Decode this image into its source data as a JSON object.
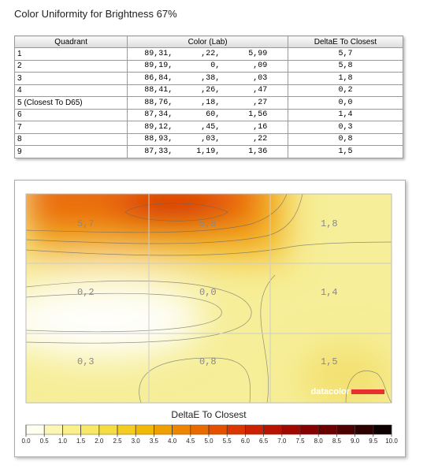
{
  "header": {
    "title": "Color Uniformity for Brightness 67%"
  },
  "table": {
    "columns": [
      "Quadrant",
      "Color (Lab)",
      "DeltaE To Closest"
    ],
    "rows": [
      [
        "1",
        [
          "89,31,",
          ",22,",
          "5,99"
        ],
        "5,7"
      ],
      [
        "2",
        [
          "89,19,",
          "0,",
          ",09"
        ],
        "5,8"
      ],
      [
        "3",
        [
          "86,84,",
          ",38,",
          ",03"
        ],
        "1,8"
      ],
      [
        "4",
        [
          "88,41,",
          ",26,",
          ",47"
        ],
        "0,2"
      ],
      [
        "5 (Closest To D65)",
        [
          "88,76,",
          ",18,",
          ",27"
        ],
        "0,0"
      ],
      [
        "6",
        [
          "87,34,",
          "60,",
          "1,56"
        ],
        "1,4"
      ],
      [
        "7",
        [
          "89,12,",
          ",45,",
          ",16"
        ],
        "0,3"
      ],
      [
        "8",
        [
          "88,93,",
          ",03,",
          ",22"
        ],
        "0,8"
      ],
      [
        "9",
        [
          "87,33,",
          "1,19,",
          "1,36"
        ],
        "1,5"
      ]
    ]
  },
  "heatmap": {
    "labels": [
      [
        "5,7",
        "5,8",
        "1,8"
      ],
      [
        "0,2",
        "0,0",
        "1,4"
      ],
      [
        "0,3",
        "0,8",
        "1,5"
      ]
    ],
    "logo": "datacolor",
    "legend_title": "DeltaE To Closest",
    "legend_ticks": [
      "0.0",
      "0.5",
      "1.0",
      "1.5",
      "2.0",
      "2.5",
      "3.0",
      "3.5",
      "4.0",
      "4.5",
      "5.0",
      "5.5",
      "6.0",
      "6.5",
      "7.0",
      "7.5",
      "8.0",
      "8.5",
      "9.0",
      "9.5",
      "10.0"
    ],
    "legend_colors": [
      "#fffff0",
      "#fbf6b4",
      "#f9f08c",
      "#f7e866",
      "#f6dc44",
      "#f4cc22",
      "#f2b806",
      "#f09f00",
      "#ee8500",
      "#ea6a00",
      "#e45000",
      "#dc3600",
      "#cc2200",
      "#b81200",
      "#a00800",
      "#860200",
      "#6a0000",
      "#4e0000",
      "#2e0000",
      "#0e0000"
    ]
  }
}
